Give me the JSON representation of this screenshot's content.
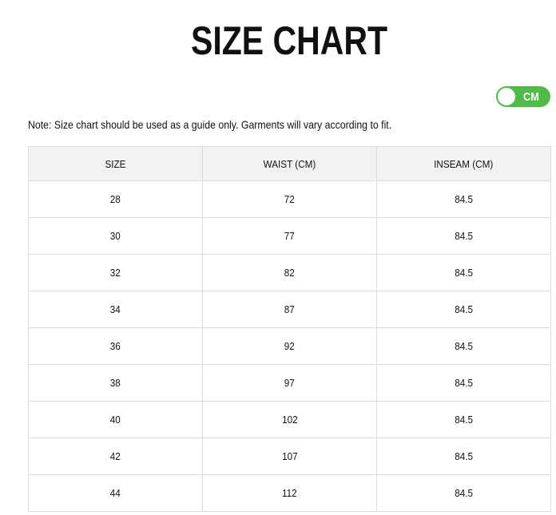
{
  "title": "SIZE CHART",
  "unit_toggle": {
    "label": "CM",
    "on": true,
    "color": "#4fba48"
  },
  "note": "Note: Size chart should be used as a guide only. Garments will vary according to fit.",
  "table": {
    "headers": [
      "SIZE",
      "WAIST (CM)",
      "INSEAM (CM)"
    ],
    "rows": [
      [
        "28",
        "72",
        "84.5"
      ],
      [
        "30",
        "77",
        "84.5"
      ],
      [
        "32",
        "82",
        "84.5"
      ],
      [
        "34",
        "87",
        "84.5"
      ],
      [
        "36",
        "92",
        "84.5"
      ],
      [
        "38",
        "97",
        "84.5"
      ],
      [
        "40",
        "102",
        "84.5"
      ],
      [
        "42",
        "107",
        "84.5"
      ],
      [
        "44",
        "112",
        "84.5"
      ]
    ]
  }
}
